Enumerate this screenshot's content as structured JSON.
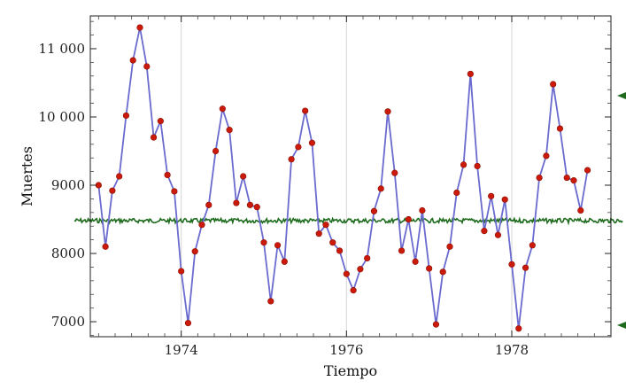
{
  "chart_data": {
    "type": "line",
    "xlabel": "Tiempo",
    "ylabel": "Muertes",
    "xlim": [
      1972.9,
      1979.2
    ],
    "ylim": [
      6780,
      11480
    ],
    "x_ticks": [
      1974,
      1976,
      1978
    ],
    "x_tick_labels": [
      "1974",
      "1976",
      "1978"
    ],
    "y_ticks": [
      7000,
      8000,
      9000,
      10000,
      11000
    ],
    "y_tick_labels": [
      "7000",
      "8000",
      "9000",
      "10 000",
      "11 000"
    ],
    "grid": "vertical lines at 1974, 1976, 1978",
    "series": [
      {
        "color": "#6a6acf",
        "marker_color": "#cc1a0a",
        "x": [
          1973.0,
          1973.0833,
          1973.1667,
          1973.25,
          1973.3333,
          1973.4167,
          1973.5,
          1973.5833,
          1973.6667,
          1973.75,
          1973.8333,
          1973.9167,
          1974.0,
          1974.0833,
          1974.1667,
          1974.25,
          1974.3333,
          1974.4167,
          1974.5,
          1974.5833,
          1974.6667,
          1974.75,
          1974.8333,
          1974.9167,
          1975.0,
          1975.0833,
          1975.1667,
          1975.25,
          1975.3333,
          1975.4167,
          1975.5,
          1975.5833,
          1975.6667,
          1975.75,
          1975.8333,
          1975.9167,
          1976.0,
          1976.0833,
          1976.1667,
          1976.25,
          1976.3333,
          1976.4167,
          1976.5,
          1976.5833,
          1976.6667,
          1976.75,
          1976.8333,
          1976.9167,
          1977.0,
          1977.0833,
          1977.1667,
          1977.25,
          1977.3333,
          1977.4167,
          1977.5,
          1977.5833,
          1977.6667,
          1977.75,
          1977.8333,
          1977.9167,
          1978.0,
          1978.0833,
          1978.1667,
          1978.25,
          1978.3333,
          1978.4167,
          1978.5,
          1978.5833,
          1978.6667,
          1978.75,
          1978.8333,
          1978.9167
        ],
        "values": [
          9000,
          8100,
          8920,
          9130,
          10020,
          10830,
          11310,
          10740,
          9700,
          9940,
          9150,
          8910,
          7740,
          6980,
          8030,
          8420,
          8710,
          9500,
          10120,
          9810,
          8740,
          9130,
          8710,
          8680,
          8160,
          7300,
          8120,
          7880,
          9380,
          9560,
          10090,
          9620,
          8290,
          8420,
          8160,
          8040,
          7700,
          7460,
          7770,
          7930,
          8620,
          8950,
          10080,
          9180,
          8040,
          8500,
          7880,
          8630,
          7780,
          6960,
          7730,
          8100,
          8890,
          9300,
          10630,
          9280,
          8330,
          8840,
          8270,
          8790,
          7840,
          6900,
          7790,
          8120,
          9110,
          9430,
          10480,
          9830,
          9110,
          9070,
          8630,
          9220
        ]
      },
      {
        "color": "#1e6b1e",
        "style": "noisy horizontal band",
        "x": [
          1972.9,
          1979.2
        ],
        "values": [
          8480,
          8480
        ]
      }
    ]
  }
}
